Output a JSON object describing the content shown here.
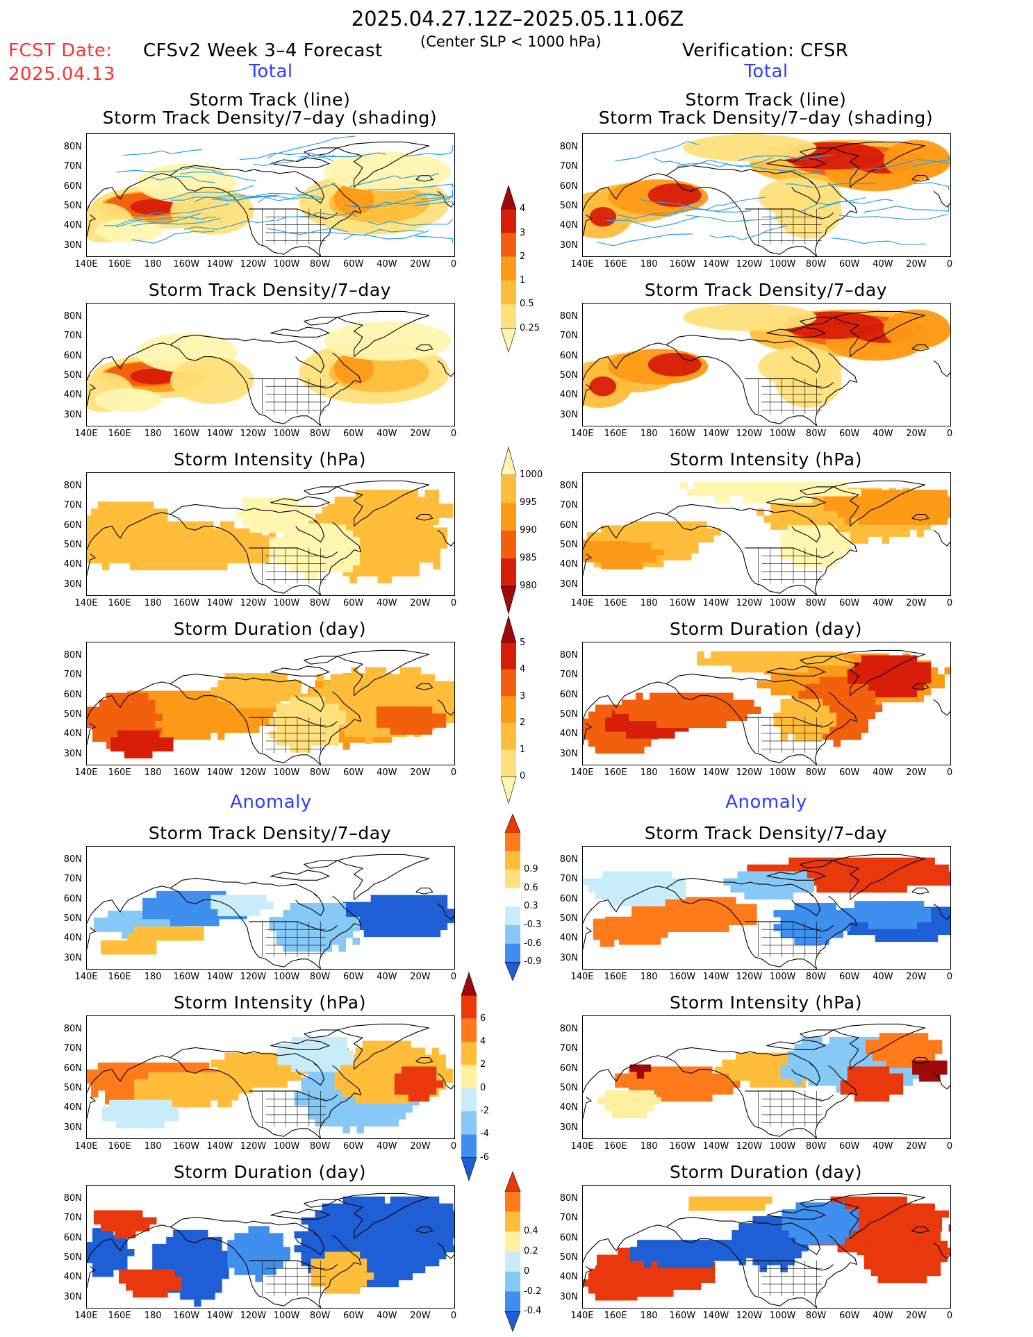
{
  "header": {
    "period": "2025.04.27.12Z–2025.05.11.06Z",
    "fcst_label": "FCST Date:",
    "fcst_date": "2025.04.13",
    "model": "CFSv2 Week 3–4 Forecast",
    "criterion": "(Center SLP < 1000 hPa)",
    "verification": "Verification: CFSR"
  },
  "sections": {
    "total_left": "Total",
    "total_right": "Total",
    "anomaly_left": "Anomaly",
    "anomaly_right": "Anomaly"
  },
  "panel_titles": {
    "track_line": "Storm Track (line)",
    "track_density_shading": "Storm Track Density/7–day (shading)",
    "track_density": "Storm Track Density/7–day",
    "intensity": "Storm Intensity (hPa)",
    "duration": "Storm Duration (day)"
  },
  "axes": {
    "lat_labels": [
      "80N",
      "70N",
      "60N",
      "50N",
      "40N",
      "30N"
    ],
    "lon_labels": [
      "140E",
      "160E",
      "180",
      "160W",
      "140W",
      "120W",
      "100W",
      "80W",
      "60W",
      "40W",
      "20W",
      "0"
    ]
  },
  "colorbars": {
    "density": {
      "labels": [
        "0.25",
        "0.5",
        "1",
        "2",
        "3",
        "4"
      ],
      "colors": [
        "#fff6b0",
        "#ffe07a",
        "#ffbd3a",
        "#ff9a16",
        "#f2600d",
        "#d81e08",
        "#9e0a0a"
      ]
    },
    "intensity": {
      "labels": [
        "1000",
        "995",
        "990",
        "985",
        "980"
      ],
      "colors": [
        "#fff6b0",
        "#ffbd3a",
        "#ff9a16",
        "#f2600d",
        "#d81e08",
        "#9e0a0a"
      ]
    },
    "duration": {
      "labels": [
        "0",
        "1",
        "2",
        "3",
        "4",
        "5"
      ],
      "colors": [
        "#fff6b0",
        "#ffe07a",
        "#ffbd3a",
        "#ff9a16",
        "#f2600d",
        "#d81e08",
        "#9e0a0a"
      ]
    },
    "anom_density": {
      "labels": [
        "-0.9",
        "-0.6",
        "-0.3",
        "0.3",
        "0.6",
        "0.9"
      ],
      "colors": [
        "#1f5fd6",
        "#3f8fee",
        "#86c8f6",
        "#c9ecfb",
        "#ffffff",
        "#ffe07a",
        "#ffbd3a",
        "#ff7a1a",
        "#e8380c"
      ]
    },
    "anom_intensity": {
      "labels": [
        "-6",
        "-4",
        "-2",
        "0",
        "2",
        "4",
        "6"
      ],
      "colors": [
        "#1f5fd6",
        "#3f8fee",
        "#86c8f6",
        "#c9ecfb",
        "#fff0a0",
        "#ffbd3a",
        "#ff7a1a",
        "#e8380c",
        "#9e0a0a"
      ]
    },
    "anom_duration": {
      "labels": [
        "-0.4",
        "-0.2",
        "0",
        "0.2",
        "0.4"
      ],
      "colors": [
        "#1f5fd6",
        "#3f8fee",
        "#86c8f6",
        "#c9ecfb",
        "#fff0a0",
        "#ffbd3a",
        "#ff7a1a",
        "#e8380c"
      ]
    }
  },
  "colors": {
    "track_line": "#2aa0e0",
    "header_red": "#ff3030",
    "section_blue": "#2e3cff"
  }
}
